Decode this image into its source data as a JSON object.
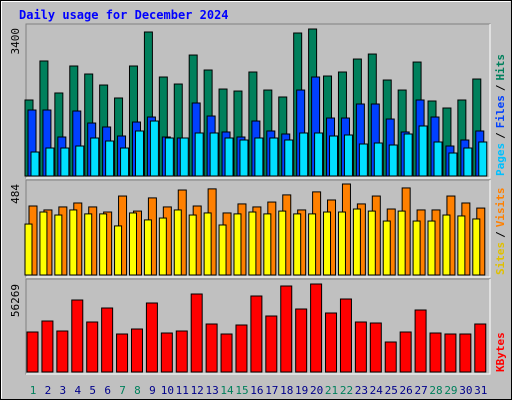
{
  "chart_data": [
    {
      "type": "bar",
      "title": "Daily usage for December 2024",
      "ylim": [
        0,
        3400
      ],
      "yticks": [
        3400
      ],
      "legend_separator": "/",
      "series": [
        {
          "name": "Hits",
          "color": "#00805c",
          "label_color": "#00805c",
          "values": [
            1746,
            2642,
            1907,
            2527,
            2343,
            2090,
            1792,
            2527,
            3308,
            2274,
            2113,
            2779,
            2435,
            1998,
            1952,
            2389,
            1975,
            1815,
            3285,
            3377,
            2297,
            2389,
            2687,
            2802,
            2205,
            1975,
            2618,
            1723,
            1562,
            1746,
            2228
          ]
        },
        {
          "name": "Files",
          "color": "#0040ff",
          "label_color": "#0040ff",
          "values": [
            1516,
            1516,
            896,
            1493,
            1217,
            1126,
            919,
            1240,
            1355,
            896,
            873,
            1677,
            1378,
            1011,
            896,
            1263,
            1034,
            965,
            1975,
            2274,
            1332,
            1332,
            1654,
            1654,
            1309,
            1011,
            1746,
            1355,
            689,
            827,
            1034
          ]
        },
        {
          "name": "Pages",
          "color": "#00e0ff",
          "label_color": "#00c0ff",
          "values": [
            551,
            643,
            643,
            689,
            873,
            804,
            643,
            1034,
            1263,
            873,
            873,
            988,
            988,
            873,
            827,
            873,
            873,
            827,
            988,
            988,
            919,
            942,
            735,
            758,
            712,
            965,
            1149,
            781,
            528,
            643,
            781
          ]
        }
      ]
    },
    {
      "type": "bar",
      "ylim": [
        0,
        484
      ],
      "yticks": [
        484
      ],
      "legend_separator": "/",
      "series": [
        {
          "name": "Visits",
          "color": "#ff8000",
          "label_color": "#ff8000",
          "values": [
            367,
            346,
            362,
            383,
            362,
            335,
            420,
            340,
            410,
            362,
            452,
            367,
            458,
            330,
            378,
            362,
            388,
            426,
            346,
            442,
            399,
            484,
            378,
            420,
            351,
            463,
            346,
            346,
            420,
            383,
            356
          ]
        },
        {
          "name": "Sites",
          "color": "#ffff00",
          "label_color": "#e0c000",
          "values": [
            271,
            335,
            319,
            346,
            325,
            325,
            261,
            330,
            293,
            303,
            346,
            319,
            330,
            266,
            325,
            335,
            325,
            340,
            325,
            325,
            335,
            335,
            351,
            340,
            287,
            340,
            287,
            287,
            319,
            314,
            298
          ]
        }
      ]
    },
    {
      "type": "bar",
      "ylim": [
        0,
        56269
      ],
      "yticks": [
        56269
      ],
      "categories": [
        "1",
        "2",
        "3",
        "4",
        "5",
        "6",
        "7",
        "8",
        "9",
        "10",
        "11",
        "12",
        "13",
        "14",
        "15",
        "16",
        "17",
        "18",
        "19",
        "20",
        "21",
        "22",
        "23",
        "24",
        "25",
        "26",
        "27",
        "28",
        "29",
        "30",
        "31"
      ],
      "category_colors": [
        "#00805c",
        "#00008b",
        "#00008b",
        "#00008b",
        "#00008b",
        "#00008b",
        "#00805c",
        "#00805c",
        "#00008b",
        "#00008b",
        "#00008b",
        "#00008b",
        "#00008b",
        "#00805c",
        "#00805c",
        "#00008b",
        "#00008b",
        "#00008b",
        "#00008b",
        "#00008b",
        "#00805c",
        "#00805c",
        "#00008b",
        "#00008b",
        "#00008b",
        "#00008b",
        "#00008b",
        "#00805c",
        "#00805c",
        "#00008b",
        "#00008b"
      ],
      "series": [
        {
          "name": "KBytes",
          "color": "#ff0000",
          "label_color": "#ff0000",
          "values": [
            25576,
            32610,
            26215,
            46037,
            31970,
            40922,
            24297,
            27494,
            44119,
            24937,
            26215,
            49873,
            30691,
            24297,
            30052,
            48594,
            35806,
            54988,
            40282,
            56269,
            37725,
            46676,
            31970,
            31331,
            19182,
            25576,
            39643,
            24937,
            24297,
            24297,
            30691
          ]
        }
      ]
    }
  ]
}
